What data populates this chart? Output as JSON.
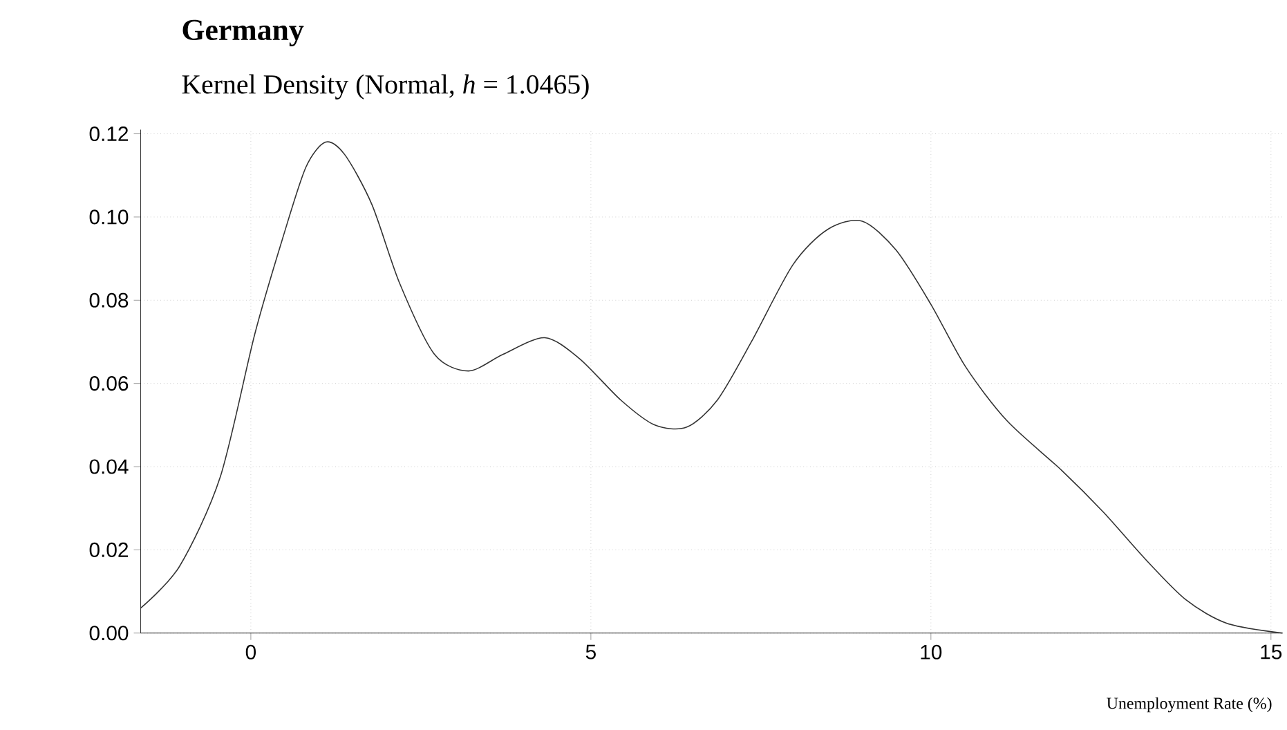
{
  "chart_data": {
    "type": "line",
    "title": "Germany",
    "subtitle": "Kernel Density (Normal, *h* = 1.0465)",
    "xlabel": "Unemployment Rate (%)",
    "x": [
      -1.62,
      -1.05,
      -0.45,
      0.06,
      0.47,
      0.81,
      1.1,
      1.38,
      1.78,
      2.19,
      2.7,
      3.2,
      3.71,
      4.32,
      4.83,
      5.44,
      5.94,
      6.41,
      6.86,
      7.36,
      7.97,
      8.48,
      8.99,
      9.49,
      10.0,
      10.51,
      11.12,
      11.93,
      12.54,
      13.14,
      13.75,
      14.36,
      15.17
    ],
    "values": [
      0.006,
      0.016,
      0.0375,
      0.072,
      0.095,
      0.112,
      0.118,
      0.115,
      0.103,
      0.084,
      0.067,
      0.063,
      0.067,
      0.071,
      0.066,
      0.056,
      0.05,
      0.0495,
      0.056,
      0.07,
      0.0885,
      0.097,
      0.099,
      0.092,
      0.079,
      0.064,
      0.051,
      0.039,
      0.029,
      0.018,
      0.008,
      0.0023,
      0.0
    ],
    "color": "#333333",
    "xlim": [
      -1.62,
      15.17
    ],
    "ylim": [
      0,
      0.121
    ],
    "xticks": [
      0,
      5,
      10,
      15
    ],
    "yticks": [
      {
        "value": 0,
        "label": "0.00"
      },
      {
        "value": 0.02,
        "label": "0.02"
      },
      {
        "value": 0.04,
        "label": "0.04"
      },
      {
        "value": 0.06,
        "label": "0.06"
      },
      {
        "value": 0.08,
        "label": "0.08"
      },
      {
        "value": 0.1,
        "label": "0.10"
      },
      {
        "value": 0.12,
        "label": "0.12"
      }
    ],
    "grid": true
  }
}
